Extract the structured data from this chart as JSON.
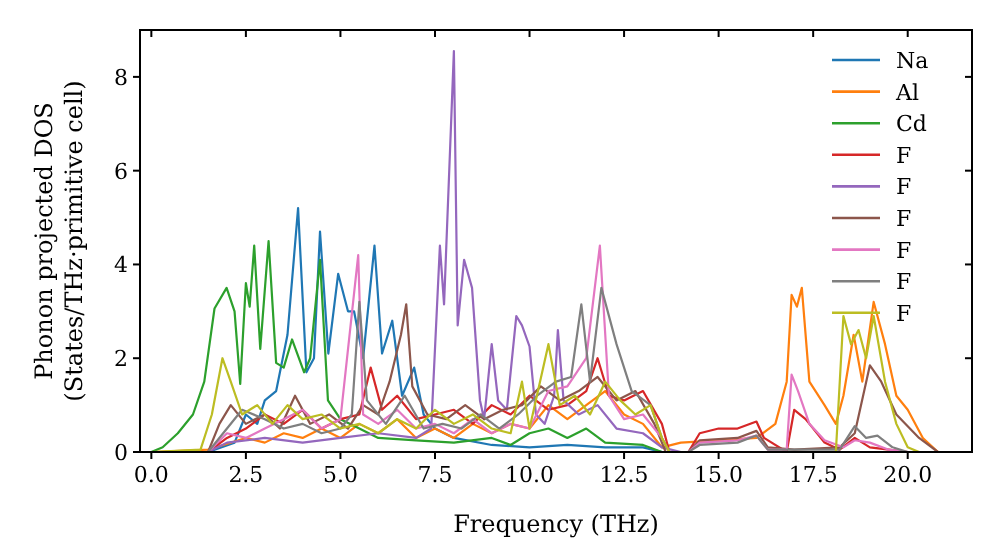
{
  "chart_data": {
    "type": "line",
    "xlabel": "Frequency (THz)",
    "ylabel": "Phonon projected DOS\n(States/THz·primitive cell)",
    "xlim": [
      -0.3,
      21.7
    ],
    "ylim": [
      0,
      9
    ],
    "xticks": [
      {
        "value": 0,
        "label": "0.0"
      },
      2.5,
      {
        "value": 5,
        "label": "5.0"
      },
      7.5,
      {
        "value": 10,
        "label": "10.0"
      },
      12.5,
      {
        "value": 15,
        "label": "15.0"
      },
      17.5,
      {
        "value": 20,
        "label": "20.0"
      }
    ],
    "yticks": [
      0,
      2,
      4,
      6,
      8
    ],
    "legend": "top right",
    "grid": false,
    "line_style": "solid",
    "series": [
      {
        "name": "Na",
        "color": "#1f77b4",
        "x": [
          0,
          1.5,
          2.2,
          2.5,
          2.8,
          3.0,
          3.3,
          3.6,
          3.88,
          4.1,
          4.3,
          4.46,
          4.68,
          4.94,
          5.2,
          5.36,
          5.6,
          5.9,
          6.1,
          6.37,
          6.63,
          6.95,
          7.2,
          7.5,
          8,
          9,
          10,
          11,
          12,
          13,
          13.5,
          21
        ],
        "values": [
          0,
          0,
          0.2,
          0.8,
          0.6,
          1.1,
          1.3,
          2.5,
          5.2,
          1.7,
          2.0,
          4.7,
          2.1,
          3.8,
          3.0,
          3.0,
          2.0,
          4.4,
          2.1,
          2.8,
          1.2,
          1.8,
          0.8,
          0.5,
          0.3,
          0.15,
          0.1,
          0.15,
          0.1,
          0.1,
          0,
          0
        ]
      },
      {
        "name": "Al",
        "color": "#ff7f0e",
        "x": [
          0,
          1.5,
          2.5,
          3,
          3.5,
          4,
          4.5,
          5,
          5.5,
          6,
          6.5,
          7,
          7.5,
          8,
          8.5,
          9,
          9.5,
          10,
          10.5,
          11,
          11.5,
          12,
          12.5,
          13,
          13.5,
          14,
          15,
          16,
          16.5,
          16.8,
          16.93,
          17.07,
          17.2,
          17.4,
          17.8,
          18.1,
          18.3,
          18.57,
          18.8,
          19.1,
          19.4,
          19.7,
          20.0,
          20.4,
          20.8,
          21
        ],
        "values": [
          0,
          0.05,
          0.3,
          0.2,
          0.4,
          0.3,
          0.5,
          0.3,
          0.6,
          0.4,
          0.7,
          0.3,
          0.5,
          0.3,
          0.6,
          0.4,
          0.6,
          0.5,
          1.0,
          0.7,
          1.0,
          1.3,
          0.8,
          0.6,
          0.1,
          0.2,
          0.25,
          0.3,
          0.6,
          1.5,
          3.35,
          3.1,
          3.5,
          1.5,
          1.0,
          0.6,
          1.2,
          2.5,
          1.5,
          3.2,
          2.3,
          1.2,
          0.9,
          0.3,
          0,
          0
        ]
      },
      {
        "name": "Cd",
        "color": "#2ca02c",
        "x": [
          0,
          0.3,
          0.7,
          1.1,
          1.4,
          1.67,
          1.99,
          2.2,
          2.35,
          2.5,
          2.6,
          2.72,
          2.88,
          3.1,
          3.3,
          3.5,
          3.72,
          4.04,
          4.2,
          4.46,
          4.67,
          5.0,
          5.5,
          6,
          7,
          8,
          9,
          9.5,
          10,
          10.5,
          11,
          11.5,
          12,
          13,
          13.5,
          21
        ],
        "values": [
          0,
          0.1,
          0.4,
          0.8,
          1.5,
          3.06,
          3.5,
          3.0,
          1.45,
          3.6,
          3.1,
          4.4,
          2.2,
          4.5,
          1.9,
          1.8,
          2.4,
          1.7,
          2.0,
          4.1,
          1.1,
          0.7,
          0.5,
          0.3,
          0.25,
          0.2,
          0.3,
          0.15,
          0.4,
          0.5,
          0.3,
          0.5,
          0.2,
          0.15,
          0,
          0
        ]
      },
      {
        "name": "F",
        "color": "#d62728",
        "x": [
          0,
          1.5,
          2,
          2.5,
          3,
          3.5,
          4,
          4.5,
          5,
          5.5,
          5.8,
          6.1,
          6.5,
          7,
          7.5,
          8,
          8.5,
          9,
          9.5,
          10,
          10.5,
          11,
          11.5,
          11.8,
          12.1,
          12.5,
          13,
          13.5,
          13.7,
          14.2,
          14.5,
          15,
          15.5,
          16,
          16.2,
          16.8,
          17.0,
          17.3,
          17.8,
          18.2,
          18.6,
          19,
          19.5,
          20,
          21
        ],
        "values": [
          0,
          0,
          0.3,
          0.5,
          0.8,
          0.6,
          0.9,
          0.5,
          0.7,
          0.8,
          1.8,
          0.9,
          1.2,
          0.7,
          0.8,
          0.9,
          0.6,
          1.0,
          0.8,
          1.2,
          0.9,
          1.0,
          1.3,
          2.0,
          1.2,
          1.1,
          1.3,
          0.6,
          0,
          0,
          0.4,
          0.5,
          0.5,
          0.65,
          0.3,
          0,
          0.9,
          0.7,
          0.2,
          0.05,
          0.3,
          0.1,
          0.05,
          0,
          0
        ]
      },
      {
        "name": "F",
        "color": "#9467bd",
        "x": [
          0,
          1.5,
          2,
          3,
          4,
          5,
          6,
          7,
          7.4,
          7.63,
          7.74,
          8.0,
          8.1,
          8.27,
          8.48,
          8.69,
          8.8,
          9.0,
          9.17,
          9.4,
          9.65,
          9.8,
          10.0,
          10.17,
          10.4,
          10.65,
          10.75,
          10.9,
          11.3,
          11.8,
          12.3,
          13,
          13.5,
          14,
          21
        ],
        "values": [
          0,
          0,
          0.2,
          0.3,
          0.2,
          0.3,
          0.4,
          0.3,
          0.5,
          4.4,
          3.15,
          8.55,
          2.7,
          4.1,
          3.5,
          1.1,
          0.7,
          2.3,
          1.1,
          0.9,
          2.9,
          2.7,
          2.25,
          0.8,
          0.6,
          1.2,
          2.6,
          1.1,
          0.8,
          1.0,
          0.5,
          0.4,
          0.1,
          0,
          0
        ]
      },
      {
        "name": "F",
        "color": "#8c564b",
        "x": [
          0,
          1.5,
          1.8,
          2.1,
          2.5,
          3,
          3.4,
          3.8,
          4.2,
          4.7,
          5.2,
          5.6,
          6,
          6.3,
          6.6,
          6.74,
          6.9,
          7.3,
          7.8,
          8.3,
          8.8,
          9.3,
          9.8,
          10.3,
          10.8,
          11.3,
          11.8,
          12.3,
          12.8,
          13.3,
          13.6,
          14.2,
          14.5,
          15.5,
          16,
          16.3,
          17,
          18.2,
          18.6,
          19.0,
          19.3,
          19.7,
          20.3,
          20.8,
          21
        ],
        "values": [
          0,
          0,
          0.6,
          1.0,
          0.6,
          0.8,
          0.5,
          1.2,
          0.6,
          0.8,
          0.5,
          1.0,
          0.8,
          1.5,
          2.5,
          3.15,
          1.4,
          0.8,
          0.7,
          1.0,
          0.7,
          0.9,
          1.0,
          1.4,
          1.1,
          1.3,
          1.6,
          1.1,
          1.3,
          0.6,
          0,
          0,
          0.25,
          0.3,
          0.45,
          0.1,
          0.05,
          0.1,
          0.4,
          1.85,
          1.5,
          0.8,
          0.3,
          0,
          0
        ]
      },
      {
        "name": "F",
        "color": "#e377c2",
        "x": [
          0,
          1.5,
          2,
          2.5,
          3,
          3.5,
          4,
          4.5,
          5,
          5.47,
          5.6,
          6,
          6.5,
          7,
          7.5,
          8,
          8.5,
          9,
          9.5,
          10,
          10.5,
          11,
          11.5,
          11.86,
          12.1,
          12.5,
          13,
          13.5,
          13.7,
          14.2,
          14.5,
          15.5,
          16,
          16.3,
          16.8,
          16.93,
          17.1,
          17.4,
          17.8,
          18.3,
          18.6,
          19.0,
          19.5,
          20,
          21
        ],
        "values": [
          0,
          0,
          0.4,
          0.3,
          0.5,
          0.7,
          0.9,
          0.5,
          0.7,
          4.2,
          0.8,
          0.6,
          0.9,
          0.5,
          0.6,
          0.4,
          0.7,
          0.4,
          0.6,
          0.5,
          1.3,
          1.4,
          2.0,
          4.4,
          1.2,
          0.7,
          0.8,
          0.3,
          0,
          0,
          0.2,
          0.25,
          0.35,
          0.05,
          0.05,
          1.65,
          1.3,
          0.6,
          0.25,
          0.1,
          0.25,
          0.2,
          0.05,
          0,
          0
        ]
      },
      {
        "name": "F",
        "color": "#7f7f7f",
        "x": [
          0,
          1.5,
          2,
          2.4,
          3,
          3.5,
          4,
          4.5,
          5,
          5.3,
          5.5,
          5.7,
          6.2,
          6.7,
          7.2,
          7.7,
          8.2,
          8.7,
          9.2,
          9.7,
          10.2,
          10.7,
          11.1,
          11.37,
          11.6,
          11.9,
          12.3,
          12.7,
          13.2,
          13.5,
          13.7,
          14.2,
          14.5,
          15.5,
          16,
          16.3,
          18.2,
          18.6,
          18.9,
          19.2,
          19.6,
          20,
          21
        ],
        "values": [
          0,
          0,
          0.5,
          0.9,
          0.7,
          0.5,
          0.6,
          0.4,
          0.5,
          0.8,
          3.2,
          1.1,
          0.6,
          1.2,
          0.5,
          0.6,
          0.5,
          0.8,
          0.5,
          0.8,
          1.2,
          1.5,
          1.6,
          3.15,
          1.5,
          3.5,
          2.3,
          1.3,
          1.0,
          0.3,
          0,
          0,
          0.15,
          0.2,
          0.35,
          0.05,
          0.05,
          0.55,
          0.3,
          0.35,
          0.1,
          0,
          0
        ]
      },
      {
        "name": "F",
        "color": "#bcbd22",
        "x": [
          0,
          1.3,
          1.6,
          1.88,
          2.1,
          2.4,
          2.8,
          3.2,
          3.6,
          4,
          4.5,
          5,
          5.5,
          6,
          6.5,
          7,
          7.5,
          8,
          8.5,
          9,
          9.5,
          9.8,
          10.0,
          10.5,
          10.8,
          11.2,
          11.6,
          12,
          12.4,
          12.8,
          13.2,
          13.5,
          13.7,
          18.1,
          18.3,
          18.5,
          18.7,
          18.9,
          19.1,
          19.4,
          19.7,
          20,
          20.3
        ],
        "values": [
          0,
          0.05,
          0.8,
          2.0,
          1.5,
          0.8,
          1.0,
          0.6,
          1.0,
          0.7,
          0.8,
          0.5,
          0.6,
          0.4,
          0.7,
          0.5,
          0.9,
          0.6,
          0.8,
          0.5,
          0.4,
          1.5,
          0.5,
          2.3,
          1.0,
          1.2,
          0.8,
          1.5,
          1.1,
          0.8,
          1.0,
          0.3,
          0,
          0,
          2.9,
          2.3,
          2.6,
          2.0,
          2.9,
          1.5,
          0.6,
          0.1,
          0
        ]
      }
    ]
  }
}
